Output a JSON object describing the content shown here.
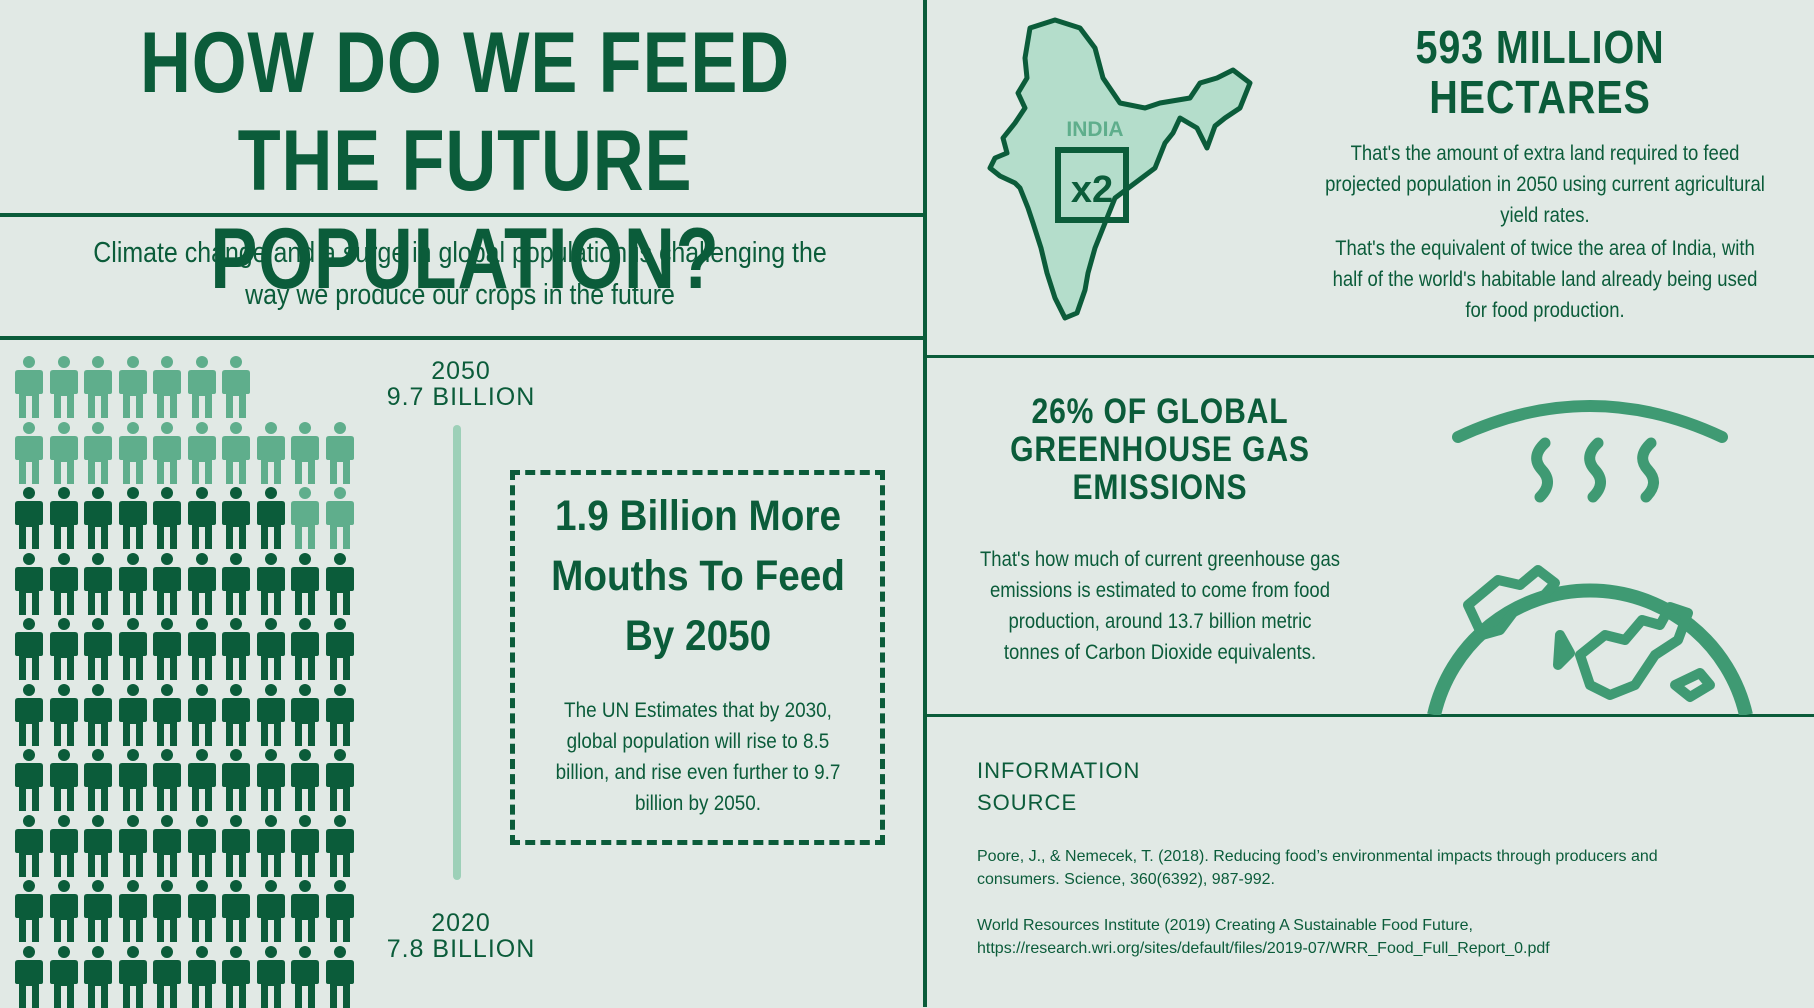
{
  "title": "HOW DO WE FEED THE FUTURE POPULATION?",
  "subtitle": "Climate change and a surge in global population is challenging the way we produce our crops in the future",
  "timeline": {
    "top_year": "2050",
    "top_value": "9.7 BILLION",
    "bottom_year": "2020",
    "bottom_value": "7.8 BILLION"
  },
  "people_chart": {
    "rows": [
      7,
      10,
      10,
      10,
      10,
      10,
      10,
      10,
      10,
      10
    ],
    "light_counts": [
      7,
      10,
      2,
      0,
      0,
      0,
      0,
      0,
      0,
      0
    ],
    "colors": {
      "dark": "#0b5c3a",
      "light": "#5fae8c"
    }
  },
  "claim": {
    "headline": "1.9 Billion More Mouths To Feed By 2050",
    "body": "The UN Estimates that by 2030, global population will rise to 8.5 billion, and rise even further to 9.7 billion by 2050."
  },
  "land": {
    "map_label": "INDIA",
    "multiplier": "x2",
    "headline": "593 MILLION HECTARES",
    "text1": "That's the amount of extra land required to feed projected population in 2050 using current agricultural yield rates.",
    "text2": "That's the equivalent of twice the area of India, with half of the world's habitable land already being used for food production."
  },
  "emissions": {
    "headline": "26% OF GLOBAL GREENHOUSE GAS EMISSIONS",
    "text": "That's how much of current greenhouse gas emissions is estimated to come from food production, around 13.7 billion metric tonnes of Carbon Dioxide equivalents."
  },
  "sources": {
    "label": "INFORMATION SOURCE",
    "ref1": "Poore, J., & Nemecek, T. (2018). Reducing food’s environmental impacts through producers and consumers. Science, 360(6392), 987-992.",
    "ref2": "World Resources Institute (2019) Creating A Sustainable Food Future, https://research.wri.org/sites/default/files/2019-07/WRR_Food_Full_Report_0.pdf"
  },
  "colors": {
    "background": "#e1e9e5",
    "primary": "#0b5c3a",
    "accent": "#5fae8c",
    "map_fill": "#b4ddcb"
  }
}
